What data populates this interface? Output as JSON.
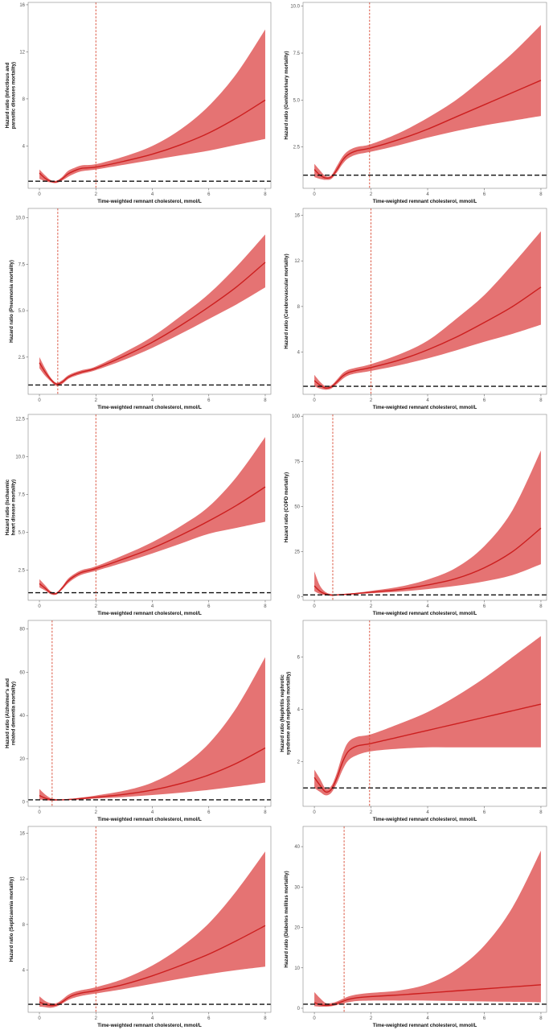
{
  "figure": {
    "x_axis_label": "Time-weighted remnant cholesterol, mmol/L",
    "x_ticks": [
      0,
      2,
      4,
      6,
      8
    ],
    "reference_hazard_ratio": 1,
    "colors": {
      "curve": "#cc1f1f",
      "band": "#e46c6c",
      "cutoff": "#d7442d",
      "reference": "#111111",
      "frame": "#888888"
    }
  },
  "chart_data": [
    {
      "type": "line",
      "ylabel": [
        "Hazard ratio (Infectious and",
        "parasitic diseases mortality)"
      ],
      "xlabel": "Time-weighted remnant cholesterol, mmol/L",
      "y_ticks": [
        "4",
        "8",
        "12",
        "16"
      ],
      "y_tick_values": [
        4,
        8,
        12,
        16
      ],
      "xlim": [
        -0.4,
        8.2
      ],
      "ylim": [
        0.4,
        16.2
      ],
      "cutoff_x": 2.0,
      "x": [
        0,
        0.2,
        0.4,
        0.6,
        0.8,
        1.0,
        1.2,
        1.5,
        2.0,
        3.0,
        4.0,
        5.0,
        6.0,
        7.0,
        8.0
      ],
      "hr": [
        1.7,
        1.25,
        1.0,
        0.95,
        1.2,
        1.6,
        1.85,
        2.1,
        2.2,
        2.7,
        3.3,
        4.1,
        5.1,
        6.4,
        7.9
      ],
      "lower": [
        1.2,
        1.0,
        0.9,
        0.85,
        1.05,
        1.35,
        1.6,
        1.85,
        2.0,
        2.4,
        2.8,
        3.2,
        3.6,
        4.1,
        4.6
      ],
      "upper": [
        2.0,
        1.5,
        1.1,
        1.05,
        1.35,
        1.85,
        2.1,
        2.35,
        2.45,
        3.1,
        4.0,
        5.4,
        7.4,
        10.2,
        13.9
      ]
    },
    {
      "type": "line",
      "ylabel": [
        "Hazard ratio (Genitourinary mortality)"
      ],
      "xlabel": "Time-weighted remnant cholesterol, mmol/L",
      "y_ticks": [
        "2.5",
        "5.0",
        "7.5",
        "10.0"
      ],
      "y_tick_values": [
        2.5,
        5.0,
        7.5,
        10.0
      ],
      "xlim": [
        -0.4,
        8.2
      ],
      "ylim": [
        0.3,
        10.2
      ],
      "cutoff_x": 1.95,
      "x": [
        0,
        0.2,
        0.4,
        0.6,
        0.8,
        1.0,
        1.2,
        1.5,
        2.0,
        3.0,
        4.0,
        5.0,
        6.0,
        7.0,
        8.0
      ],
      "hr": [
        1.3,
        1.0,
        0.85,
        0.9,
        1.3,
        1.8,
        2.1,
        2.3,
        2.45,
        2.9,
        3.45,
        4.1,
        4.75,
        5.4,
        6.05
      ],
      "lower": [
        0.9,
        0.8,
        0.75,
        0.8,
        1.15,
        1.6,
        1.9,
        2.1,
        2.25,
        2.6,
        3.0,
        3.35,
        3.65,
        3.9,
        4.15
      ],
      "upper": [
        1.6,
        1.25,
        0.95,
        1.0,
        1.5,
        2.0,
        2.3,
        2.5,
        2.65,
        3.25,
        4.05,
        5.0,
        6.2,
        7.5,
        9.0
      ]
    },
    {
      "type": "line",
      "ylabel": [
        "Hazard ratio (Pneumonia mortality)"
      ],
      "xlabel": "Time-weighted remnant cholesterol, mmol/L",
      "y_ticks": [
        "2.5",
        "5.0",
        "7.5",
        "10.0"
      ],
      "y_tick_values": [
        2.5,
        5.0,
        7.5,
        10.0
      ],
      "xlim": [
        -0.4,
        8.2
      ],
      "ylim": [
        0.5,
        10.5
      ],
      "cutoff_x": 0.65,
      "x": [
        0,
        0.2,
        0.4,
        0.6,
        0.8,
        1.0,
        1.2,
        1.5,
        2.0,
        3.0,
        4.0,
        5.0,
        6.0,
        7.0,
        8.0
      ],
      "hr": [
        2.2,
        1.7,
        1.3,
        1.05,
        1.15,
        1.4,
        1.55,
        1.7,
        1.9,
        2.55,
        3.3,
        4.2,
        5.2,
        6.3,
        7.6
      ],
      "lower": [
        1.9,
        1.5,
        1.2,
        0.95,
        1.05,
        1.3,
        1.45,
        1.6,
        1.8,
        2.35,
        3.0,
        3.75,
        4.55,
        5.35,
        6.25
      ],
      "upper": [
        2.5,
        1.9,
        1.4,
        1.12,
        1.25,
        1.5,
        1.65,
        1.8,
        2.0,
        2.75,
        3.6,
        4.7,
        5.9,
        7.4,
        9.1
      ]
    },
    {
      "type": "line",
      "ylabel": [
        "Hazard ratio (Cerebrovascular mortality)"
      ],
      "xlabel": "Time-weighted remnant cholesterol, mmol/L",
      "y_ticks": [
        "4",
        "8",
        "12",
        "16"
      ],
      "y_tick_values": [
        4,
        8,
        12,
        16
      ],
      "xlim": [
        -0.4,
        8.2
      ],
      "ylim": [
        0.3,
        16.6
      ],
      "cutoff_x": 2.0,
      "x": [
        0,
        0.2,
        0.4,
        0.6,
        0.8,
        1.0,
        1.2,
        1.5,
        2.0,
        3.0,
        4.0,
        5.0,
        6.0,
        7.0,
        8.0
      ],
      "hr": [
        1.5,
        1.1,
        0.85,
        0.95,
        1.4,
        1.9,
        2.2,
        2.4,
        2.65,
        3.3,
        4.2,
        5.3,
        6.6,
        8.0,
        9.7
      ],
      "lower": [
        1.0,
        0.8,
        0.7,
        0.8,
        1.2,
        1.65,
        1.95,
        2.15,
        2.35,
        2.85,
        3.45,
        4.15,
        4.9,
        5.6,
        6.4
      ],
      "upper": [
        2.0,
        1.4,
        1.0,
        1.1,
        1.6,
        2.15,
        2.45,
        2.65,
        2.95,
        3.8,
        5.0,
        6.9,
        9.0,
        11.7,
        14.6
      ]
    },
    {
      "type": "line",
      "ylabel": [
        "Hazard ratio (Ischaemic",
        "heart disease mortality)"
      ],
      "xlabel": "Time-weighted remnant cholesterol, mmol/L",
      "y_ticks": [
        "2.5",
        "5.0",
        "7.5",
        "10.0",
        "12.5"
      ],
      "y_tick_values": [
        2.5,
        5.0,
        7.5,
        10.0,
        12.5
      ],
      "xlim": [
        -0.4,
        8.2
      ],
      "ylim": [
        0.5,
        12.8
      ],
      "cutoff_x": 2.0,
      "x": [
        0,
        0.2,
        0.4,
        0.6,
        0.8,
        1.0,
        1.2,
        1.5,
        2.0,
        3.0,
        4.0,
        5.0,
        6.0,
        7.0,
        8.0
      ],
      "hr": [
        1.6,
        1.3,
        1.0,
        0.95,
        1.3,
        1.75,
        2.05,
        2.35,
        2.6,
        3.25,
        3.95,
        4.8,
        5.75,
        6.8,
        8.0
      ],
      "lower": [
        1.35,
        1.15,
        0.9,
        0.88,
        1.2,
        1.6,
        1.9,
        2.2,
        2.45,
        3.0,
        3.6,
        4.25,
        4.9,
        5.3,
        5.7
      ],
      "upper": [
        1.9,
        1.5,
        1.1,
        1.02,
        1.4,
        1.9,
        2.2,
        2.5,
        2.75,
        3.5,
        4.35,
        5.4,
        6.7,
        8.7,
        11.3
      ]
    },
    {
      "type": "line",
      "ylabel": [
        "Hazard ratio (COPD mortality)"
      ],
      "xlabel": "Time-weighted remnant cholesterol, mmol/L",
      "y_ticks": [
        "0",
        "25",
        "50",
        "75",
        "100"
      ],
      "y_tick_values": [
        0,
        25,
        50,
        75,
        100
      ],
      "xlim": [
        -0.4,
        8.2
      ],
      "ylim": [
        -2,
        101
      ],
      "cutoff_x": 0.65,
      "x": [
        0,
        0.2,
        0.4,
        0.6,
        0.8,
        1.0,
        1.2,
        1.5,
        2.0,
        3.0,
        4.0,
        5.0,
        6.0,
        7.0,
        8.0
      ],
      "hr": [
        6,
        3,
        1.5,
        0.9,
        1.0,
        1.2,
        1.4,
        1.8,
        2.5,
        4.0,
        6.5,
        10,
        16,
        25,
        38
      ],
      "lower": [
        3,
        1.5,
        0.8,
        0.5,
        0.7,
        0.9,
        1.1,
        1.4,
        1.9,
        2.8,
        4.2,
        6.0,
        8.5,
        12,
        18
      ],
      "upper": [
        14,
        6,
        2.5,
        1.4,
        1.3,
        1.5,
        1.7,
        2.2,
        3.2,
        5.5,
        9.5,
        16,
        28,
        48,
        81
      ]
    },
    {
      "type": "line",
      "ylabel": [
        "Hazard ratio (Alzheimer's and",
        "related dementia mortality)"
      ],
      "xlabel": "Time-weighted remnant cholesterol, mmol/L",
      "y_ticks": [
        "0",
        "20",
        "40",
        "60",
        "80"
      ],
      "y_tick_values": [
        0,
        20,
        40,
        60,
        80
      ],
      "xlim": [
        -0.4,
        8.2
      ],
      "ylim": [
        -2,
        84
      ],
      "cutoff_x": 0.45,
      "x": [
        0,
        0.2,
        0.4,
        0.6,
        0.8,
        1.0,
        1.2,
        1.5,
        2.0,
        3.0,
        4.0,
        5.0,
        6.0,
        7.0,
        8.0
      ],
      "hr": [
        3.0,
        1.8,
        1.1,
        0.95,
        1.0,
        1.1,
        1.3,
        1.6,
        2.2,
        3.5,
        5.5,
        8.5,
        12.5,
        18,
        25
      ],
      "lower": [
        1.2,
        0.8,
        0.6,
        0.7,
        0.8,
        0.9,
        1.0,
        1.2,
        1.6,
        2.3,
        3.2,
        4.3,
        5.6,
        7.2,
        9
      ],
      "upper": [
        6.0,
        3.5,
        1.8,
        1.3,
        1.2,
        1.4,
        1.6,
        2.1,
        3.0,
        5.2,
        9.0,
        16,
        27,
        44,
        67
      ]
    },
    {
      "type": "line",
      "ylabel": [
        "Hazard ratio (Nephritis nephrotic",
        "syndrome and nephrosis mortality)"
      ],
      "xlabel": "Time-weighted remnant cholesterol, mmol/L",
      "y_ticks": [
        "2",
        "4",
        "6"
      ],
      "y_tick_values": [
        2,
        4,
        6
      ],
      "xlim": [
        -0.4,
        8.2
      ],
      "ylim": [
        0.3,
        7.4
      ],
      "cutoff_x": 1.95,
      "x": [
        0,
        0.2,
        0.4,
        0.6,
        0.8,
        1.0,
        1.2,
        1.5,
        2.0,
        3.0,
        4.0,
        5.0,
        6.0,
        7.0,
        8.0
      ],
      "hr": [
        1.4,
        1.1,
        0.85,
        0.95,
        1.4,
        2.0,
        2.4,
        2.6,
        2.7,
        2.95,
        3.2,
        3.45,
        3.7,
        3.95,
        4.2
      ],
      "lower": [
        1.0,
        0.85,
        0.72,
        0.82,
        1.2,
        1.7,
        2.05,
        2.25,
        2.4,
        2.5,
        2.55,
        2.55,
        2.55,
        2.55,
        2.55
      ],
      "upper": [
        1.7,
        1.35,
        0.98,
        1.08,
        1.6,
        2.3,
        2.75,
        2.95,
        3.05,
        3.45,
        3.9,
        4.5,
        5.2,
        6.0,
        6.8
      ]
    },
    {
      "type": "line",
      "ylabel": [
        "Hazard ratio (Septicaemia mortality)"
      ],
      "xlabel": "Time-weighted remnant cholesterol, mmol/L",
      "y_ticks": [
        "4",
        "8",
        "12",
        "16"
      ],
      "y_tick_values": [
        4,
        8,
        12,
        16
      ],
      "xlim": [
        -0.4,
        8.2
      ],
      "ylim": [
        0.3,
        16.6
      ],
      "cutoff_x": 2.0,
      "x": [
        0,
        0.2,
        0.4,
        0.6,
        0.8,
        1.0,
        1.2,
        1.5,
        2.0,
        3.0,
        4.0,
        5.0,
        6.0,
        7.0,
        8.0
      ],
      "hr": [
        1.2,
        1.0,
        0.9,
        0.95,
        1.2,
        1.55,
        1.8,
        2.0,
        2.2,
        2.75,
        3.5,
        4.4,
        5.4,
        6.6,
        7.9
      ],
      "lower": [
        0.8,
        0.75,
        0.7,
        0.8,
        1.05,
        1.35,
        1.55,
        1.75,
        1.95,
        2.35,
        2.8,
        3.25,
        3.65,
        4.0,
        4.3
      ],
      "upper": [
        1.7,
        1.3,
        1.1,
        1.1,
        1.4,
        1.8,
        2.05,
        2.25,
        2.5,
        3.25,
        4.4,
        6.0,
        8.1,
        11.0,
        14.4
      ]
    },
    {
      "type": "line",
      "ylabel": [
        "Hazard ratio (Diabetes mellitus mortality)"
      ],
      "xlabel": "Time-weighted remnant cholesterol, mmol/L",
      "y_ticks": [
        "0",
        "10",
        "20",
        "30",
        "40"
      ],
      "y_tick_values": [
        0,
        10,
        20,
        30,
        40
      ],
      "xlim": [
        -0.4,
        8.2
      ],
      "ylim": [
        -1,
        45
      ],
      "cutoff_x": 1.05,
      "x": [
        0,
        0.2,
        0.4,
        0.6,
        0.8,
        1.0,
        1.2,
        1.5,
        2.0,
        3.0,
        4.0,
        5.0,
        6.0,
        7.0,
        8.0
      ],
      "hr": [
        1.4,
        0.9,
        0.7,
        0.8,
        1.2,
        1.7,
        2.2,
        2.6,
        2.9,
        3.3,
        3.8,
        4.3,
        4.8,
        5.3,
        5.8
      ],
      "lower": [
        0.5,
        0.4,
        0.4,
        0.5,
        0.8,
        1.2,
        1.5,
        1.8,
        1.9,
        1.9,
        1.9,
        1.8,
        1.7,
        1.6,
        1.5
      ],
      "upper": [
        4.0,
        2.5,
        1.3,
        1.3,
        1.7,
        2.3,
        2.9,
        3.4,
        3.8,
        4.4,
        6.0,
        9.5,
        15.5,
        25,
        39
      ]
    }
  ]
}
